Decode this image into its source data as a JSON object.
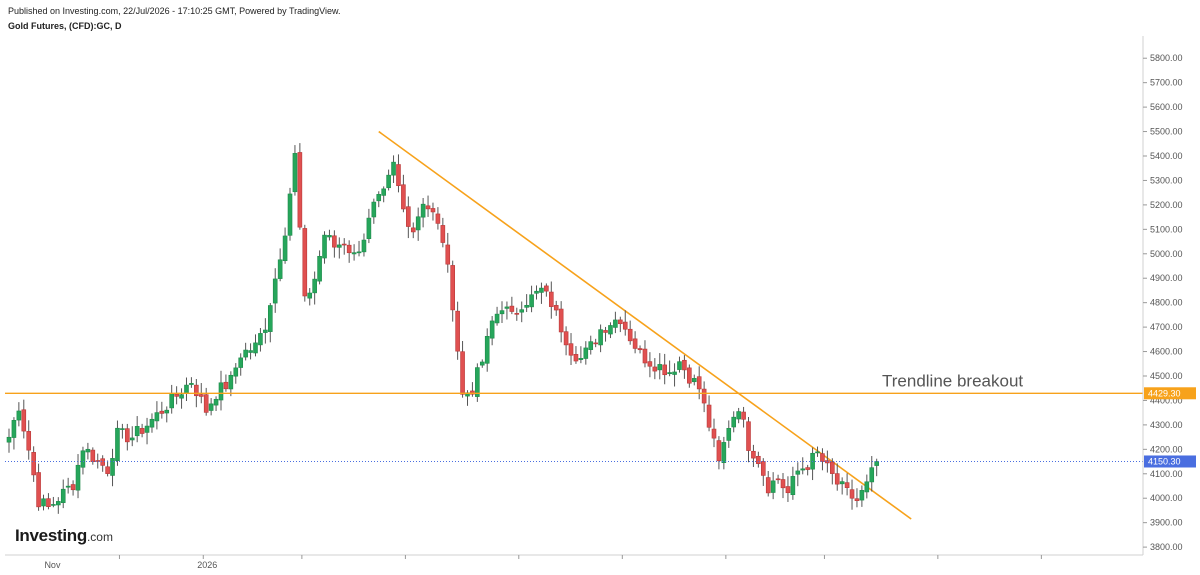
{
  "header": {
    "published": "Published on Investing.com, 22/Jul/2026 - 17:10:25 GMT, Powered by TradingView.",
    "symbol": "Gold Futures, (CFD):GC, D"
  },
  "logo": {
    "brand": "Investing",
    "suffix": ".com"
  },
  "colors": {
    "up": "#26a65b",
    "down": "#e05050",
    "wick": "#555555",
    "trendline": "#f7a21b",
    "last_price": "#4a6ee0",
    "axis": "#d0d0d0"
  },
  "chart_data": {
    "type": "candlestick",
    "instrument": "Gold Futures, (CFD):GC, D",
    "ylim": [
      3780,
      5850
    ],
    "y_ticks": [
      "3800.00",
      "3900.00",
      "4000.00",
      "4100.00",
      "4200.00",
      "4300.00",
      "4400.00",
      "4500.00",
      "4600.00",
      "4700.00",
      "4800.00",
      "4900.00",
      "5000.00",
      "5100.00",
      "5200.00",
      "5300.00",
      "5400.00",
      "5500.00",
      "5600.00",
      "5700.00",
      "5800.00"
    ],
    "x_labels": [
      {
        "label": "Nov",
        "bar": 8
      },
      {
        "label": "2026",
        "bar": 39
      }
    ],
    "x_tick_bars": [
      22,
      39,
      59,
      80,
      103,
      124,
      145,
      165,
      188,
      209
    ],
    "horizontal_level": {
      "value": 4429.3,
      "label": "4429.30"
    },
    "last_price": {
      "value": 4150.3,
      "label": "4150.30"
    },
    "annotation": "Trendline breakout",
    "trendline": {
      "start": {
        "bar": 75,
        "price": 5500
      },
      "end": {
        "bar": 183,
        "price": 3915
      }
    },
    "anchors": [
      [
        0,
        4250
      ],
      [
        2,
        4380
      ],
      [
        4,
        4200
      ],
      [
        6,
        3990
      ],
      [
        8,
        3960
      ],
      [
        10,
        4000
      ],
      [
        13,
        4060
      ],
      [
        15,
        4210
      ],
      [
        18,
        4150
      ],
      [
        20,
        4120
      ],
      [
        22,
        4260
      ],
      [
        25,
        4250
      ],
      [
        28,
        4300
      ],
      [
        31,
        4360
      ],
      [
        34,
        4420
      ],
      [
        37,
        4480
      ],
      [
        40,
        4360
      ],
      [
        42,
        4430
      ],
      [
        45,
        4480
      ],
      [
        47,
        4590
      ],
      [
        50,
        4620
      ],
      [
        52,
        4710
      ],
      [
        54,
        4900
      ],
      [
        56,
        5100
      ],
      [
        58,
        5400
      ],
      [
        60,
        4800
      ],
      [
        62,
        4900
      ],
      [
        64,
        5080
      ],
      [
        66,
        5030
      ],
      [
        68,
        5050
      ],
      [
        70,
        4990
      ],
      [
        72,
        5070
      ],
      [
        74,
        5190
      ],
      [
        76,
        5240
      ],
      [
        78,
        5360
      ],
      [
        80,
        5180
      ],
      [
        82,
        5100
      ],
      [
        84,
        5220
      ],
      [
        86,
        5160
      ],
      [
        88,
        5060
      ],
      [
        90,
        4800
      ],
      [
        92,
        4420
      ],
      [
        94,
        4450
      ],
      [
        96,
        4560
      ],
      [
        98,
        4720
      ],
      [
        100,
        4790
      ],
      [
        102,
        4740
      ],
      [
        104,
        4800
      ],
      [
        106,
        4820
      ],
      [
        108,
        4850
      ],
      [
        110,
        4800
      ],
      [
        112,
        4700
      ],
      [
        114,
        4610
      ],
      [
        116,
        4570
      ],
      [
        118,
        4620
      ],
      [
        120,
        4690
      ],
      [
        122,
        4720
      ],
      [
        124,
        4740
      ],
      [
        126,
        4660
      ],
      [
        128,
        4590
      ],
      [
        130,
        4560
      ],
      [
        132,
        4540
      ],
      [
        134,
        4520
      ],
      [
        136,
        4560
      ],
      [
        138,
        4500
      ],
      [
        140,
        4450
      ],
      [
        142,
        4300
      ],
      [
        144,
        4140
      ],
      [
        146,
        4300
      ],
      [
        148,
        4380
      ],
      [
        150,
        4220
      ],
      [
        152,
        4160
      ],
      [
        154,
        4050
      ],
      [
        156,
        4080
      ],
      [
        158,
        4020
      ],
      [
        160,
        4110
      ],
      [
        162,
        4140
      ],
      [
        164,
        4180
      ],
      [
        166,
        4120
      ],
      [
        168,
        4060
      ],
      [
        170,
        4020
      ],
      [
        172,
        3990
      ],
      [
        174,
        4050
      ],
      [
        176,
        4150
      ]
    ]
  }
}
